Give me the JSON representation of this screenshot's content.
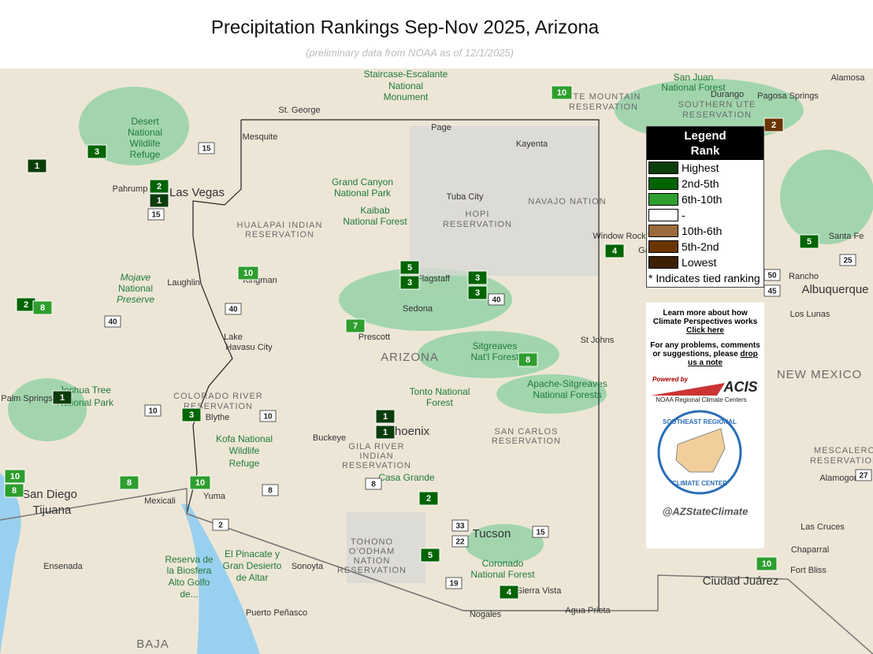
{
  "header": {
    "title": "Precipitation Rankings Sep-Nov 2025, Arizona",
    "subtitle": "(preliminary data from NOAA as of 12/1/2025)"
  },
  "legend": {
    "title": "Legend",
    "subtitle": "Rank",
    "items": [
      {
        "label": "Highest",
        "color": "#0b3d0b"
      },
      {
        "label": "2nd-5th",
        "color": "#006400"
      },
      {
        "label": "6th-10th",
        "color": "#2e9e2e"
      },
      {
        "label": "-",
        "color": "#ffffff"
      },
      {
        "label": "10th-6th",
        "color": "#9c6b3c"
      },
      {
        "label": "5th-2nd",
        "color": "#6b3500"
      },
      {
        "label": "Lowest",
        "color": "#3d1f00"
      }
    ],
    "note": "* Indicates tied ranking"
  },
  "info": {
    "learn_more": "Learn more about how Climate Perspectives works",
    "learn_link": "Click here",
    "problems": "For any problems, comments or suggestions, please",
    "problems_link": "drop us a note"
  },
  "logos": {
    "powered": "Powered by",
    "acis": "ACIS",
    "rcc": "NOAA Regional Climate Centers",
    "srcc_top": "SOUTHEAST REGIONAL",
    "srcc_bottom": "CLIMATE CENTER",
    "handle": "@AZStateClimate"
  },
  "markers": [
    {
      "label": "1",
      "color": "#0b3d0b"
    },
    {
      "label": "3",
      "color": "#006400"
    },
    {
      "label": "2",
      "color": "#006400"
    },
    {
      "label": "1",
      "color": "#0b3d0b"
    },
    {
      "label": "10",
      "color": "#2e9e2e"
    },
    {
      "label": "2",
      "color": "#6b3500"
    },
    {
      "label": "5",
      "color": "#006400"
    },
    {
      "label": "3",
      "color": "#006400"
    },
    {
      "label": "3",
      "color": "#006400"
    },
    {
      "label": "3",
      "color": "#006400"
    },
    {
      "label": "4",
      "color": "#006400"
    },
    {
      "label": "5",
      "color": "#006400"
    },
    {
      "label": "10",
      "color": "#2e9e2e"
    },
    {
      "label": "2",
      "color": "#006400"
    },
    {
      "label": "8",
      "color": "#2e9e2e"
    },
    {
      "label": "7",
      "color": "#2e9e2e"
    },
    {
      "label": "8",
      "color": "#2e9e2e"
    },
    {
      "label": "1",
      "color": "#0b3d0b"
    },
    {
      "label": "3",
      "color": "#006400"
    },
    {
      "label": "1",
      "color": "#0b3d0b"
    },
    {
      "label": "1",
      "color": "#0b3d0b"
    },
    {
      "label": "10",
      "color": "#2e9e2e"
    },
    {
      "label": "8",
      "color": "#2e9e2e"
    },
    {
      "label": "8",
      "color": "#2e9e2e"
    },
    {
      "label": "10",
      "color": "#2e9e2e"
    },
    {
      "label": "2",
      "color": "#006400"
    },
    {
      "label": "5",
      "color": "#006400"
    },
    {
      "label": "4",
      "color": "#006400"
    },
    {
      "label": "10",
      "color": "#2e9e2e"
    }
  ],
  "map_labels": [
    "St. George",
    "Page",
    "Kayenta",
    "Mesquite",
    "Staircase-Escalante",
    "National",
    "Monument",
    "Grand Canyon",
    "National Park",
    "Kaibab",
    "National Forest",
    "Tuba City",
    "HOPI",
    "RESERVATION",
    "NAVAJO NATION",
    "Las Vegas",
    "Pahrump",
    "HUALAPAI INDIAN",
    "RESERVATION",
    "Kingman",
    "Laughlin",
    "Mojave",
    "National",
    "Preserve",
    "Flagstaff",
    "Sedona",
    "Prescott",
    "ARIZONA",
    "Lake",
    "Havasu City",
    "Sitgreaves",
    "Nat'l Forest",
    "St Johns",
    "Apache-Sitgreaves",
    "National Forests",
    "Tonto National",
    "Forest",
    "Phoenix",
    "Buckeye",
    "COLORADO RIVER",
    "RESERVATION",
    "Blythe",
    "Kofa National",
    "Wildlife",
    "Refuge",
    "Joshua Tree",
    "National Park",
    "Palm Springs",
    "GILA RIVER",
    "INDIAN",
    "RESERVATION",
    "SAN CARLOS",
    "RESERVATION",
    "Casa Grande",
    "Tucson",
    "TOHONO",
    "O'ODHAM",
    "NATION",
    "RESERVATION",
    "Coronado",
    "National Forest",
    "Sierra Vista",
    "Nogales",
    "Agua Prieta",
    "Yuma",
    "Mexicali",
    "San Diego",
    "Tijuana",
    "Ensenada",
    "El Pinacate y",
    "Gran Desierto",
    "de Altar",
    "Sonoyta",
    "Reserva de",
    "la Biosfera",
    "Alto Golfo",
    "de...",
    "Puerto Peñasco",
    "BAJA",
    "Window Rock",
    "Gallup",
    "Albuquerque",
    "Santa Fe",
    "Rancho",
    "Los Lunas",
    "NEW MEXICO",
    "Las Cruces",
    "Chaparral",
    "Fort Bliss",
    "Ciudad Juárez",
    "Alamogordo",
    "MESCALERO",
    "RESERVATION",
    "Durango",
    "Pagosa Springs",
    "Alamosa",
    "San Juan",
    "National Forest",
    "UTE MOUNTAIN",
    "RESERVATION",
    "SOUTHERN UTE",
    "RESERVATION",
    "Desert",
    "National",
    "Wildlife",
    "Refuge"
  ],
  "shields": [
    "15",
    "15",
    "40",
    "40",
    "40",
    "10",
    "10",
    "8",
    "8",
    "19",
    "2",
    "25",
    "50",
    "45",
    "33",
    "22",
    "15",
    "27"
  ]
}
